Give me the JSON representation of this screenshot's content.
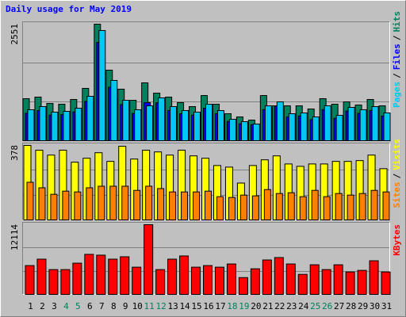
{
  "title": "Daily usage for May 2019",
  "title_color": "#0000ff",
  "legend_separator": "/",
  "chart_data": [
    {
      "type": "bar",
      "series": [
        {
          "name": "Hits",
          "color": "#00805c",
          "values": [
            920,
            954,
            815,
            798,
            902,
            1145,
            2551,
            1544,
            1128,
            885,
            1267,
            1041,
            954,
            833,
            746,
            989,
            798,
            590,
            520,
            451,
            989,
            763,
            763,
            763,
            694,
            920,
            798,
            850,
            781,
            902,
            763
          ]
        },
        {
          "name": "Files",
          "color": "#0000ff",
          "values": [
            600,
            660,
            560,
            570,
            630,
            860,
            2150,
            1170,
            790,
            600,
            833,
            830,
            660,
            590,
            560,
            710,
            590,
            420,
            370,
            350,
            680,
            760,
            520,
            540,
            460,
            680,
            490,
            650,
            600,
            660,
            540
          ]
        },
        {
          "name": "Pages",
          "color": "#00c8f0",
          "values": [
            677,
            746,
            625,
            642,
            711,
            972,
            2412,
            1319,
            885,
            677,
            763,
            937,
            746,
            659,
            625,
            798,
            659,
            468,
            416,
            364,
            763,
            850,
            590,
            607,
            520,
            763,
            555,
            729,
            677,
            746,
            607
          ]
        }
      ],
      "ylim": [
        0,
        2551
      ],
      "yticks": [
        2551
      ],
      "grid": true
    },
    {
      "type": "bar",
      "series": [
        {
          "name": "Visits",
          "color": "#ffff00",
          "values": [
            378,
            354,
            329,
            354,
            293,
            313,
            341,
            297,
            374,
            309,
            354,
            345,
            329,
            354,
            325,
            313,
            276,
            268,
            187,
            276,
            305,
            325,
            284,
            272,
            284,
            284,
            297,
            297,
            301,
            329,
            260
          ]
        },
        {
          "name": "Sites",
          "color": "#ff8000",
          "values": [
            191,
            163,
            130,
            146,
            142,
            163,
            171,
            171,
            171,
            150,
            171,
            159,
            142,
            142,
            142,
            146,
            118,
            114,
            126,
            122,
            154,
            134,
            138,
            118,
            150,
            118,
            134,
            126,
            134,
            150,
            142
          ]
        }
      ],
      "ylim": [
        0,
        378
      ],
      "yticks": [
        378
      ],
      "grid": true
    },
    {
      "type": "bar",
      "categories": [
        "1",
        "2",
        "3",
        "4",
        "5",
        "6",
        "7",
        "8",
        "9",
        "10",
        "11",
        "12",
        "13",
        "14",
        "15",
        "16",
        "17",
        "18",
        "19",
        "20",
        "21",
        "22",
        "23",
        "24",
        "25",
        "26",
        "27",
        "28",
        "29",
        "30",
        "31"
      ],
      "category_colors": [
        "#000000",
        "#000000",
        "#000000",
        "#00805c",
        "#00805c",
        "#000000",
        "#000000",
        "#000000",
        "#000000",
        "#000000",
        "#00805c",
        "#00805c",
        "#000000",
        "#000000",
        "#000000",
        "#000000",
        "#000000",
        "#00805c",
        "#00805c",
        "#000000",
        "#000000",
        "#000000",
        "#000000",
        "#000000",
        "#00805c",
        "#00805c",
        "#000000",
        "#000000",
        "#000000",
        "#000000",
        "#000000"
      ],
      "series": [
        {
          "name": "KBytes",
          "color": "#ff0000",
          "values": [
            5011,
            6125,
            4315,
            4315,
            5429,
            6960,
            6821,
            6125,
            6542,
            4733,
            12114,
            4315,
            6125,
            6682,
            4733,
            5011,
            4733,
            5290,
            2923,
            4454,
            5986,
            6403,
            5290,
            3480,
            5150,
            4315,
            5150,
            3898,
            4176,
            5846,
            3898
          ]
        }
      ],
      "ylim": [
        0,
        12114
      ],
      "yticks": [
        12114
      ],
      "grid": true
    }
  ]
}
